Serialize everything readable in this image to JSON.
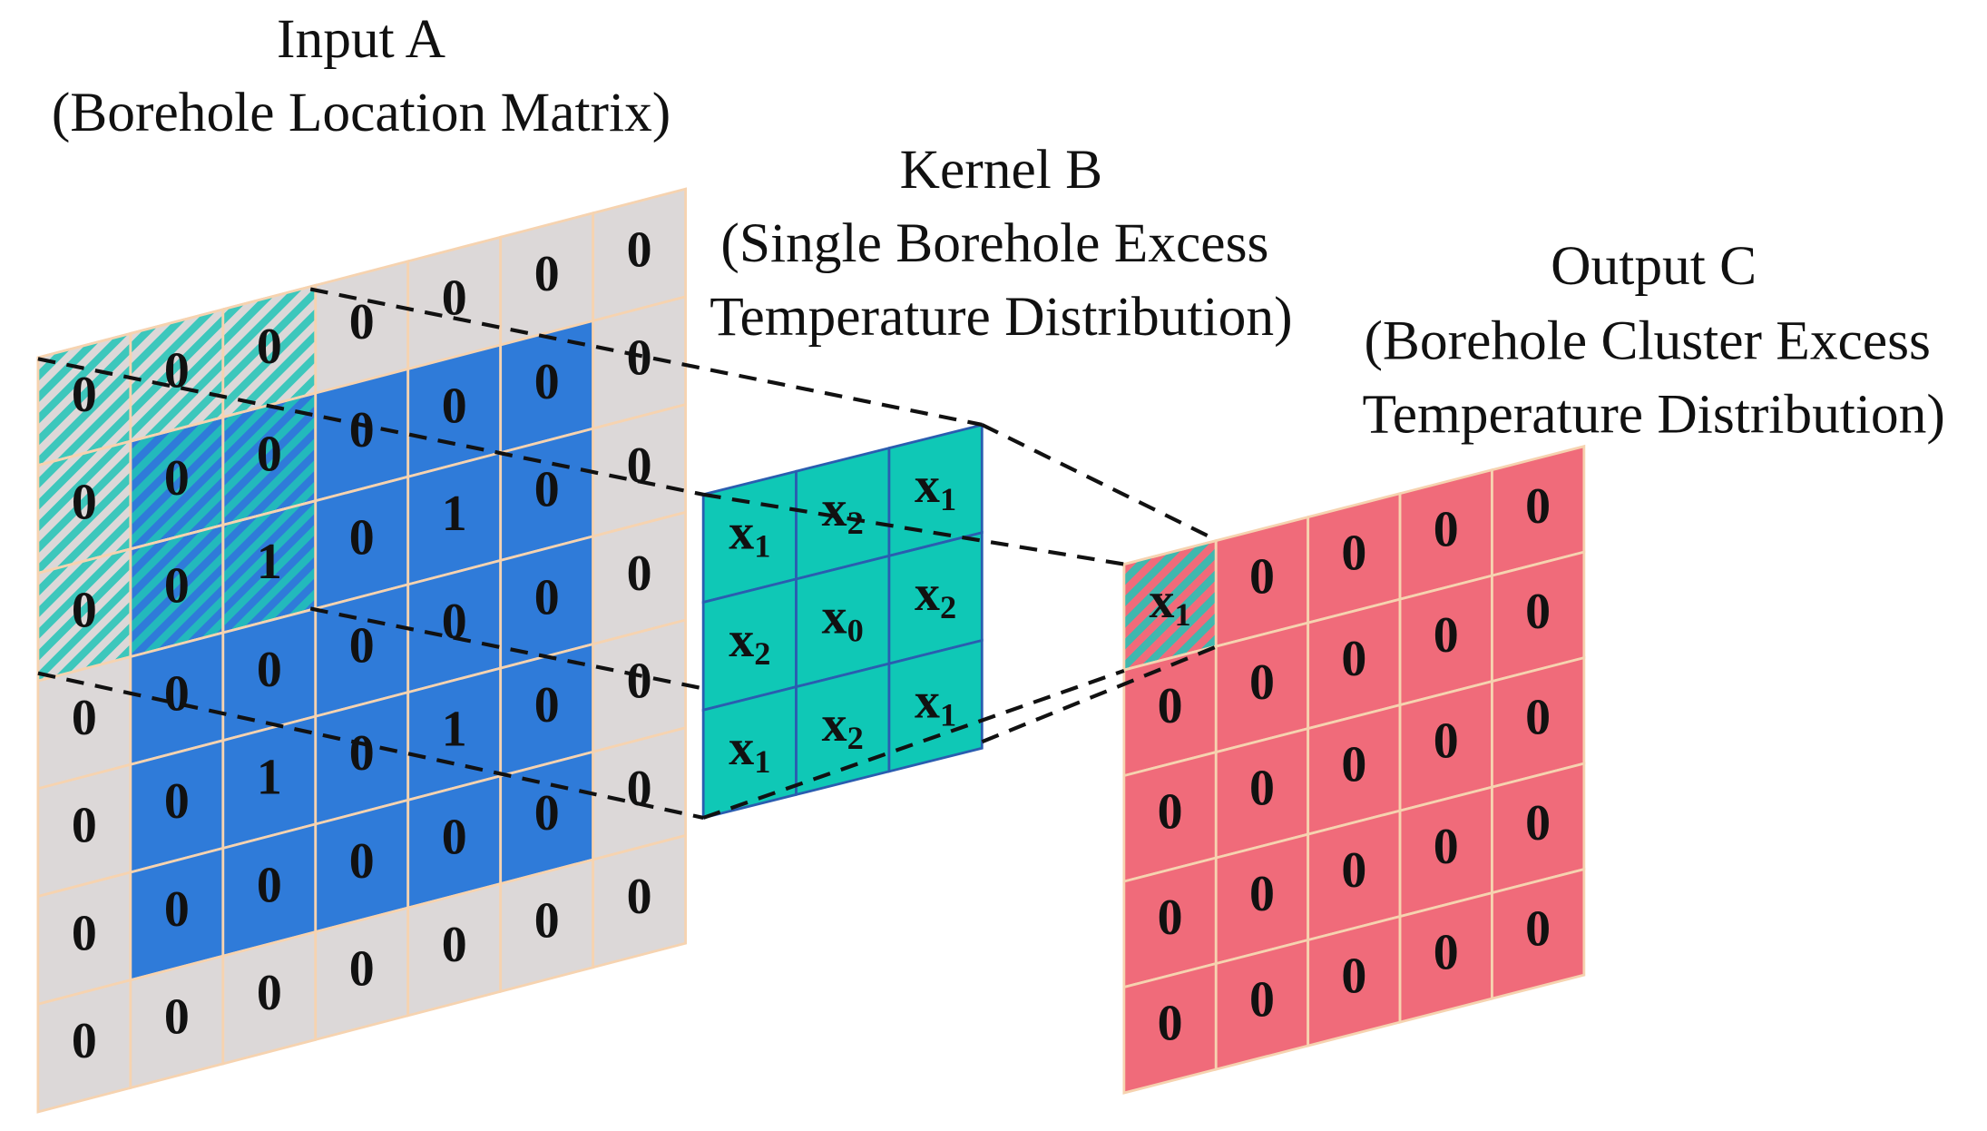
{
  "input": {
    "title": "Input  A",
    "subtitle": "(Borehole Location Matrix)",
    "cells": [
      [
        0,
        0,
        0,
        0,
        0,
        0,
        0
      ],
      [
        0,
        0,
        0,
        0,
        0,
        0,
        0
      ],
      [
        0,
        0,
        1,
        0,
        1,
        0,
        0
      ],
      [
        0,
        0,
        0,
        0,
        0,
        0,
        0
      ],
      [
        0,
        0,
        1,
        0,
        1,
        0,
        0
      ],
      [
        0,
        0,
        0,
        0,
        0,
        0,
        0
      ],
      [
        0,
        0,
        0,
        0,
        0,
        0,
        0
      ]
    ]
  },
  "kernel": {
    "title": "Kernel B",
    "subtitle_lines": [
      "(Single Borehole Excess",
      "Temperature Distribution)"
    ],
    "cells": [
      [
        {
          "base": "x",
          "sub": "1"
        },
        {
          "base": "x",
          "sub": "2"
        },
        {
          "base": "x",
          "sub": "1"
        }
      ],
      [
        {
          "base": "x",
          "sub": "2"
        },
        {
          "base": "x",
          "sub": "0"
        },
        {
          "base": "x",
          "sub": "2"
        }
      ],
      [
        {
          "base": "x",
          "sub": "1"
        },
        {
          "base": "x",
          "sub": "2"
        },
        {
          "base": "x",
          "sub": "1"
        }
      ]
    ]
  },
  "output": {
    "title": "Output C",
    "subtitle_lines": [
      "(Borehole Cluster Excess",
      "Temperature Distribution)"
    ],
    "cells": [
      [
        {
          "base": "x",
          "sub": "1"
        },
        0,
        0,
        0,
        0
      ],
      [
        0,
        0,
        0,
        0,
        0
      ],
      [
        0,
        0,
        0,
        0,
        0
      ],
      [
        0,
        0,
        0,
        0,
        0
      ],
      [
        0,
        0,
        0,
        0,
        0
      ]
    ]
  }
}
